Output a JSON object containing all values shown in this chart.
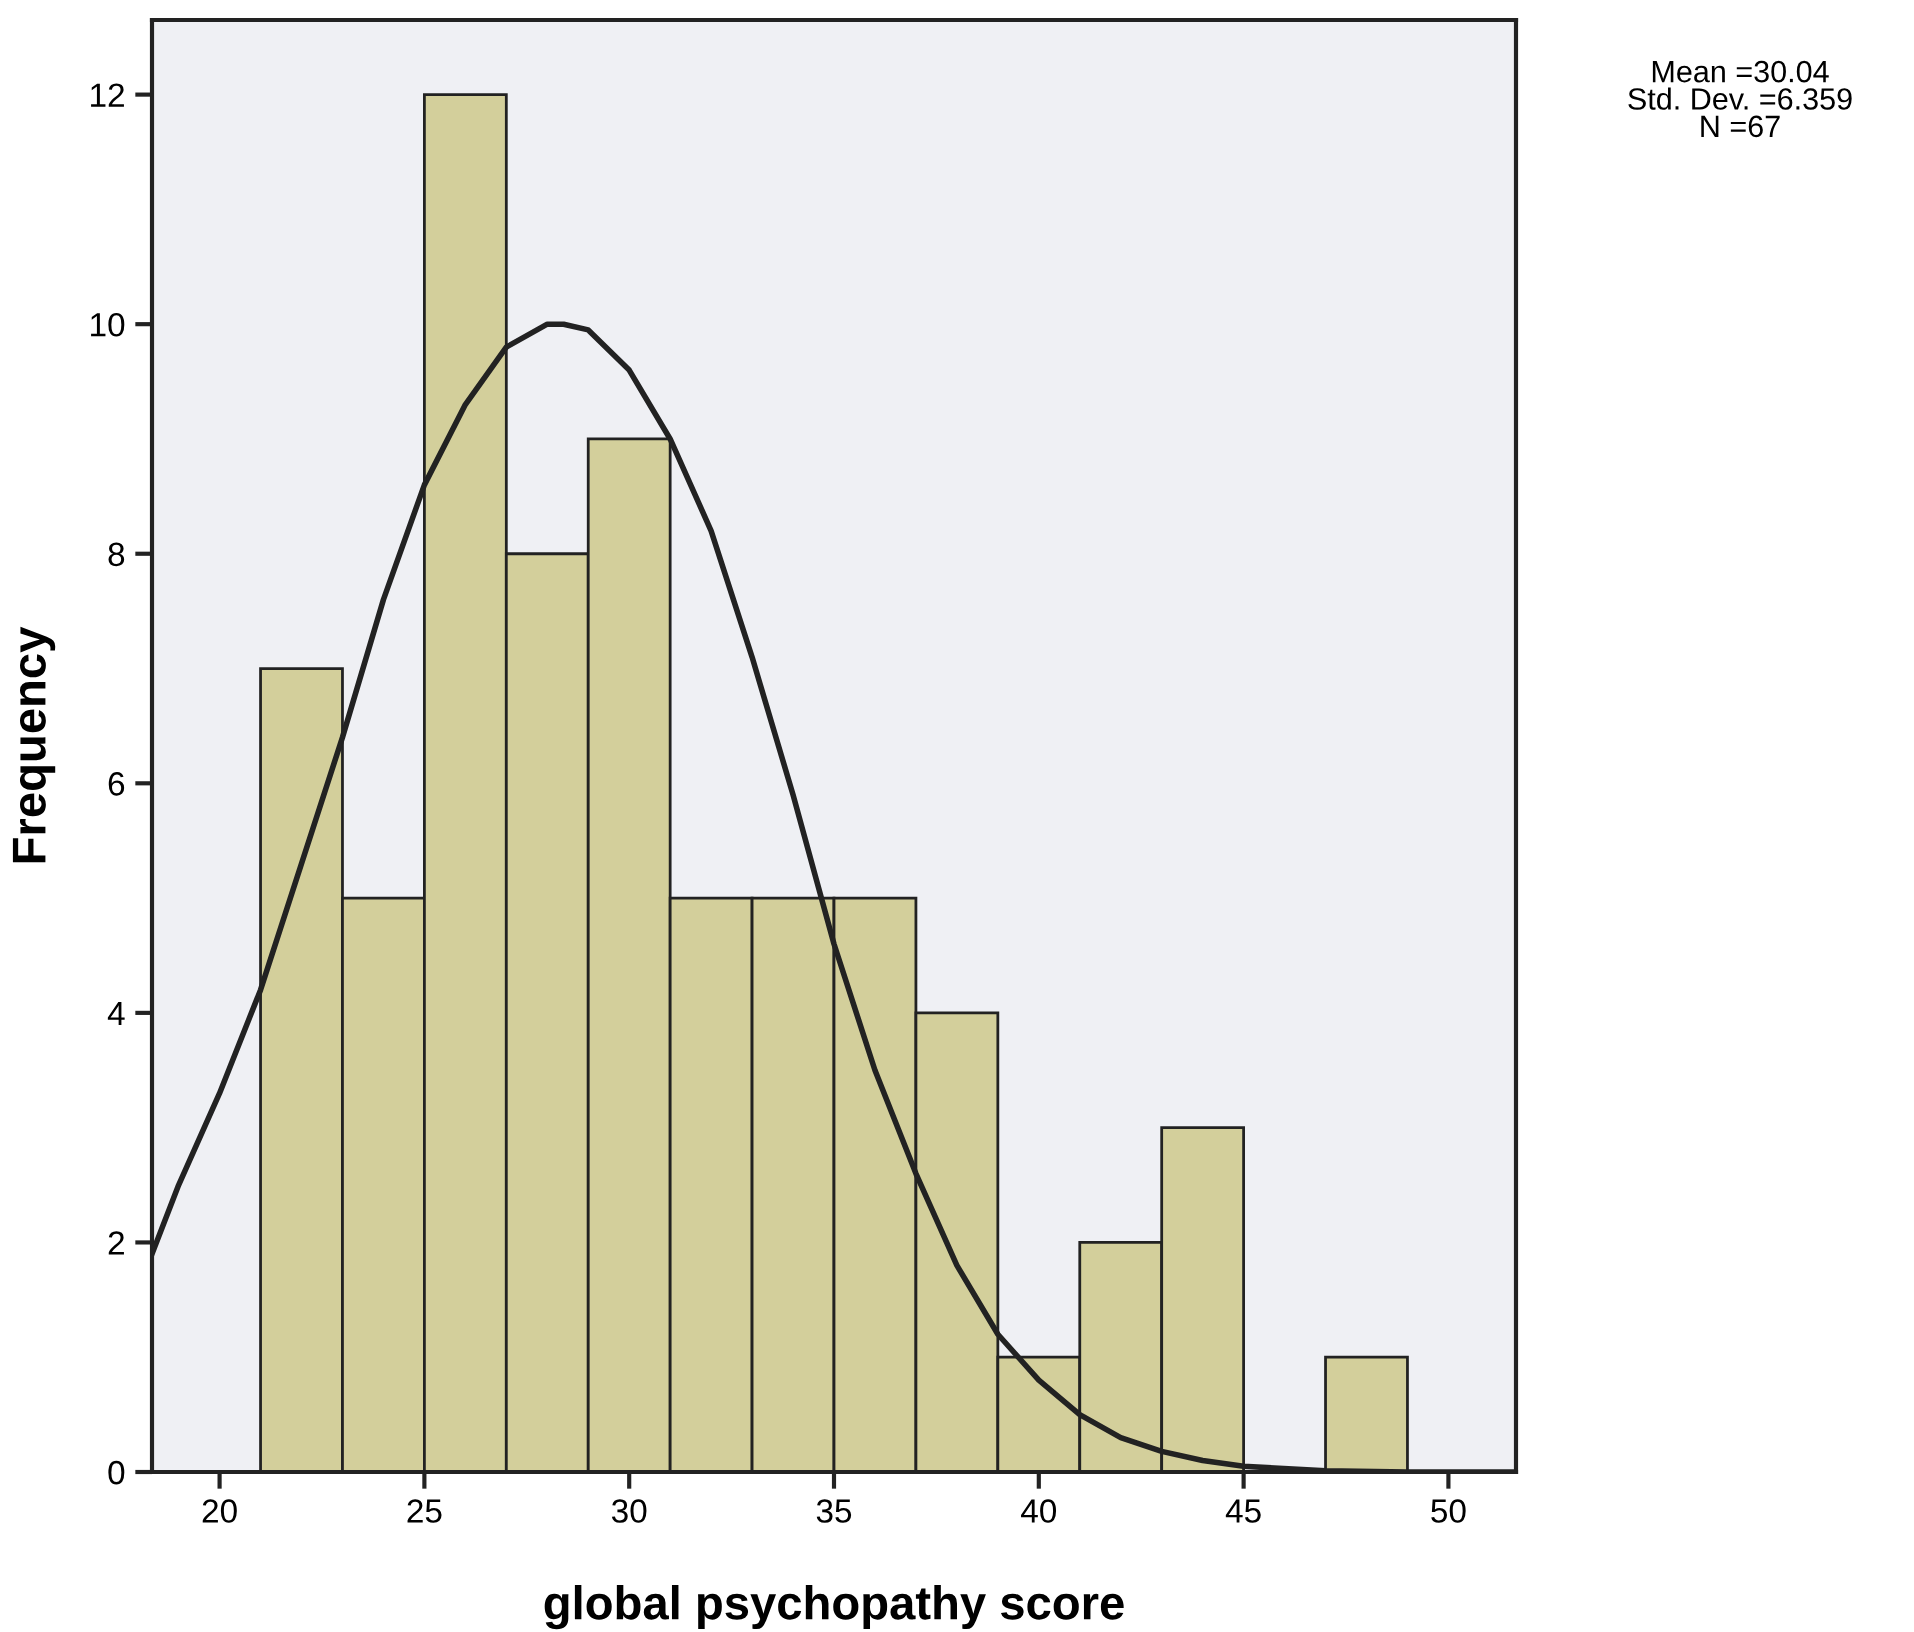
{
  "chart_data": {
    "type": "histogram",
    "xlabel": "global psychopathy score",
    "ylabel": "Frequency",
    "bins": [
      21,
      23,
      25,
      27,
      29,
      31,
      33,
      35,
      37,
      39,
      41,
      43,
      45,
      47,
      49
    ],
    "values": [
      7,
      5,
      12,
      8,
      9,
      5,
      5,
      5,
      4,
      1,
      2,
      3,
      0,
      1
    ],
    "color": "#d3cf9b",
    "series": [
      {
        "type": "line",
        "color": "#222222",
        "x": [
          18.35,
          19,
          20,
          21,
          22,
          23,
          24,
          25,
          26,
          27,
          28,
          28.4,
          29,
          30,
          31,
          32,
          33,
          34,
          35,
          36,
          37,
          38,
          39,
          40,
          41,
          42,
          43,
          44,
          45,
          47,
          49,
          51.6
        ],
        "values": [
          1.9,
          2.5,
          3.3,
          4.2,
          5.3,
          6.4,
          7.6,
          8.6,
          9.3,
          9.8,
          10,
          10,
          9.95,
          9.6,
          9.0,
          8.2,
          7.1,
          5.9,
          4.6,
          3.5,
          2.6,
          1.8,
          1.2,
          0.8,
          0.5,
          0.3,
          0.18,
          0.1,
          0.05,
          0.01,
          0,
          0
        ]
      }
    ],
    "xlim": [
      18.35,
      51.65
    ],
    "xticks": [
      20,
      25,
      30,
      35,
      40,
      45,
      50
    ],
    "ylim": [
      0,
      12.65
    ],
    "yticks": [
      0,
      2,
      4,
      6,
      8,
      10,
      12
    ],
    "grid": false,
    "annotations": [
      "Mean =30.04\nStd. Dev. =6.359\nN =67"
    ]
  }
}
